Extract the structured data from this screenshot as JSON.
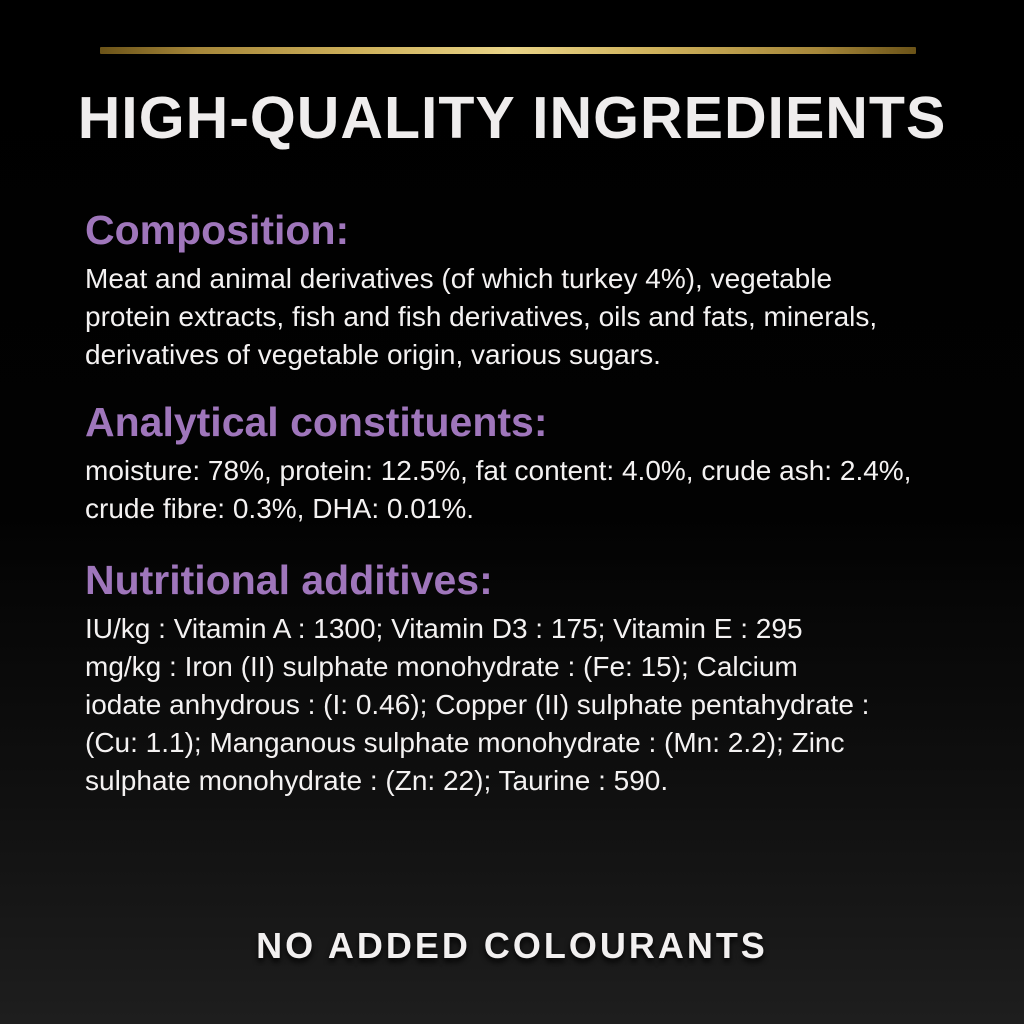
{
  "page": {
    "title": "HIGH-QUALITY INGREDIENTS",
    "footer": "NO ADDED COLOURANTS"
  },
  "sections": [
    {
      "heading": "Composition:",
      "body": "Meat and animal derivatives (of which turkey 4%), vegetable\nprotein extracts, fish and fish derivatives, oils and fats, minerals,\nderivatives of vegetable origin, various sugars."
    },
    {
      "heading": "Analytical constituents:",
      "body": "moisture: 78%, protein: 12.5%, fat content: 4.0%, crude ash: 2.4%,\ncrude fibre: 0.3%, DHA: 0.01%."
    },
    {
      "heading": "Nutritional additives:",
      "body": "IU/kg : Vitamin A : 1300; Vitamin D3 : 175; Vitamin E : 295\nmg/kg : Iron (II) sulphate monohydrate : (Fe: 15); Calcium\niodate anhydrous : (I: 0.46); Copper (II) sulphate pentahydrate :\n(Cu: 1.1); Manganous sulphate monohydrate : (Mn: 2.2); Zinc\nsulphate monohydrate : (Zn: 22); Taurine : 590."
    }
  ],
  "colors": {
    "background_top": "#000000",
    "background_bottom": "#1e1e1e",
    "heading_purple": "#9f76bb",
    "text_white": "#f4f2f2",
    "gold_dark": "#6b5318",
    "gold_light": "#e9d488"
  }
}
